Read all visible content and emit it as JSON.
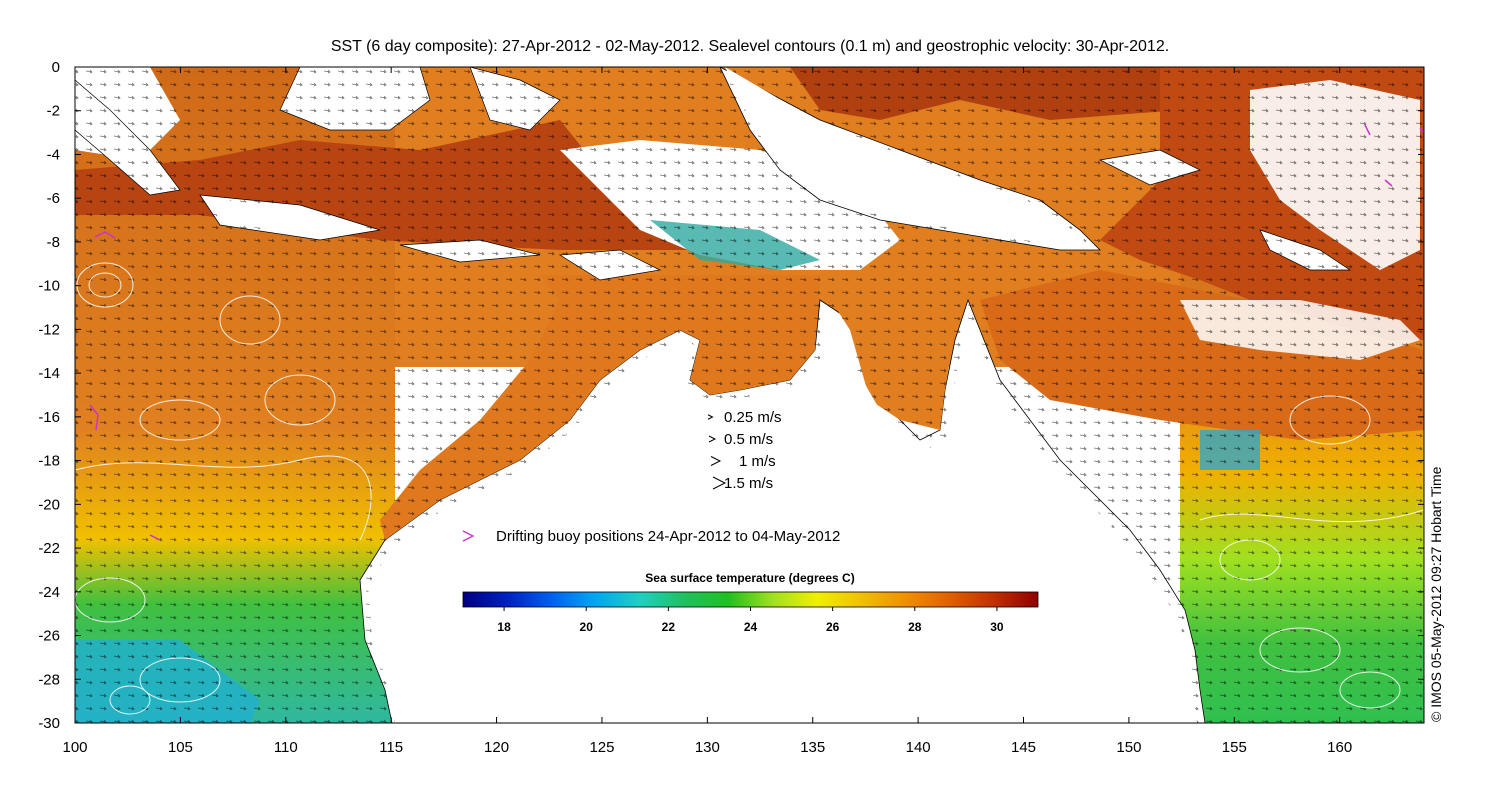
{
  "title": "SST (6 day composite): 27-Apr-2012 - 02-May-2012. Sealevel contours (0.1 m) and geostrophic velocity: 30-Apr-2012.",
  "credit": "© IMOS 05-May-2012 09:27 Hobart Time",
  "velocity_legend": [
    {
      "label": "0.25 m/s",
      "speed": 0.25
    },
    {
      "label": "0.5 m/s",
      "speed": 0.5
    },
    {
      "label": "1 m/s",
      "speed": 1
    },
    {
      "label": "1.5 m/s",
      "speed": 1.5
    }
  ],
  "buoy_legend": {
    "label": "Drifting buoy positions 24-Apr-2012 to 04-May-2012",
    "color": "#cc33cc"
  },
  "colorbar": {
    "title": "Sea surface temperature (degrees C)",
    "range": [
      17,
      31
    ],
    "ticks": [
      "18",
      "20",
      "22",
      "24",
      "26",
      "28",
      "30"
    ],
    "tick_values": [
      18,
      20,
      22,
      24,
      26,
      28,
      30
    ],
    "stops": [
      "#000080",
      "#0020c0",
      "#0060f0",
      "#00a8f0",
      "#20d0c0",
      "#20c060",
      "#20c020",
      "#a0e020",
      "#f0f000",
      "#f0c000",
      "#f09000",
      "#e06000",
      "#c03000",
      "#900000"
    ]
  },
  "map": {
    "lon_range": [
      100,
      164
    ],
    "lat_range": [
      -30,
      0
    ],
    "x_ticks": [
      "100",
      "105",
      "110",
      "115",
      "120",
      "125",
      "130",
      "135",
      "140",
      "145",
      "150",
      "155",
      "160"
    ],
    "x_tick_values": [
      100,
      105,
      110,
      115,
      120,
      125,
      130,
      135,
      140,
      145,
      150,
      155,
      160
    ],
    "y_ticks": [
      "0",
      "-2",
      "-4",
      "-6",
      "-8",
      "-10",
      "-12",
      "-14",
      "-16",
      "-18",
      "-20",
      "-22",
      "-24",
      "-26",
      "-28",
      "-30"
    ],
    "y_tick_values": [
      0,
      -2,
      -4,
      -6,
      -8,
      -10,
      -12,
      -14,
      -16,
      -18,
      -20,
      -22,
      -24,
      -26,
      -28,
      -30
    ],
    "colors": {
      "land": "#ffffff",
      "coast": "#000000",
      "warm_ocean": "#e0781e",
      "hot_ocean": "#b84012",
      "mid_ocean": "#f0a020",
      "cool_ocean": "#30c040",
      "cold_ocean": "#20b0c8"
    }
  }
}
